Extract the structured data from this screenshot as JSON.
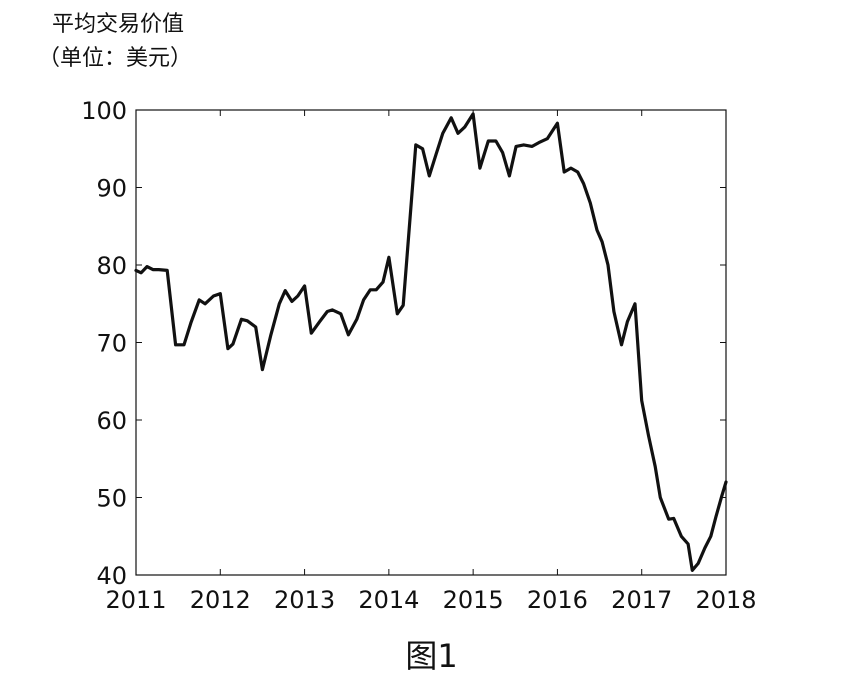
{
  "chart_data": {
    "type": "line",
    "title": "",
    "ylabel_lines": [
      "平均交易价值",
      "（单位：美元）"
    ],
    "xlabel": "",
    "xlim": [
      2011,
      2018
    ],
    "ylim": [
      40,
      100
    ],
    "xticks": [
      "2011",
      "2012",
      "2013",
      "2014",
      "2015",
      "2016",
      "2017",
      "2018"
    ],
    "yticks": [
      "100",
      "90",
      "80",
      "70",
      "60",
      "50",
      "40"
    ],
    "grid": false,
    "series": [
      {
        "x": [
          2011.0,
          2011.06,
          2011.13,
          2011.2,
          2011.27,
          2011.37,
          2011.47,
          2011.57,
          2011.65,
          2011.75,
          2011.82,
          2011.92,
          2012.0,
          2012.09,
          2012.15,
          2012.25,
          2012.32,
          2012.42,
          2012.5,
          2012.6,
          2012.7,
          2012.77,
          2012.85,
          2012.92,
          2013.0,
          2013.08,
          2013.18,
          2013.27,
          2013.33,
          2013.43,
          2013.52,
          2013.62,
          2013.7,
          2013.78,
          2013.85,
          2013.93,
          2014.0,
          2014.1,
          2014.17,
          2014.32,
          2014.4,
          2014.48,
          2014.56,
          2014.64,
          2014.74,
          2014.82,
          2014.9,
          2015.0,
          2015.08,
          2015.18,
          2015.27,
          2015.35,
          2015.43,
          2015.51,
          2015.6,
          2015.7,
          2015.78,
          2015.88,
          2016.0,
          2016.08,
          2016.16,
          2016.24,
          2016.31,
          2016.39,
          2016.47,
          2016.53,
          2016.6,
          2016.67,
          2016.76,
          2016.83,
          2016.92,
          2017.0,
          2017.08,
          2017.16,
          2017.22,
          2017.32,
          2017.38,
          2017.47,
          2017.55,
          2017.6,
          2017.67,
          2017.75,
          2017.82,
          2017.88,
          2017.95,
          2018.0
        ],
        "values": [
          79.3,
          79.0,
          79.8,
          79.4,
          79.4,
          79.3,
          69.7,
          69.7,
          72.5,
          75.5,
          75.0,
          76.0,
          76.3,
          69.2,
          69.8,
          73.0,
          72.8,
          72.0,
          66.5,
          71.0,
          75.0,
          76.7,
          75.3,
          76.0,
          77.3,
          71.2,
          72.7,
          74.0,
          74.2,
          73.7,
          71.0,
          73.0,
          75.5,
          76.8,
          76.8,
          77.8,
          81.0,
          73.7,
          74.8,
          95.5,
          95.0,
          91.5,
          94.3,
          97.0,
          99.0,
          97.0,
          97.8,
          99.5,
          92.5,
          96.0,
          96.0,
          94.5,
          91.5,
          95.3,
          95.5,
          95.3,
          95.8,
          96.3,
          98.3,
          92.0,
          92.5,
          92.0,
          90.5,
          88.0,
          84.5,
          83.0,
          80.0,
          74.0,
          69.7,
          72.7,
          75.0,
          62.5,
          58.0,
          54.0,
          50.0,
          47.2,
          47.3,
          45.0,
          44.0,
          40.6,
          41.5,
          43.5,
          45.0,
          47.5,
          50.2,
          52.0
        ]
      }
    ]
  },
  "caption": "图1"
}
